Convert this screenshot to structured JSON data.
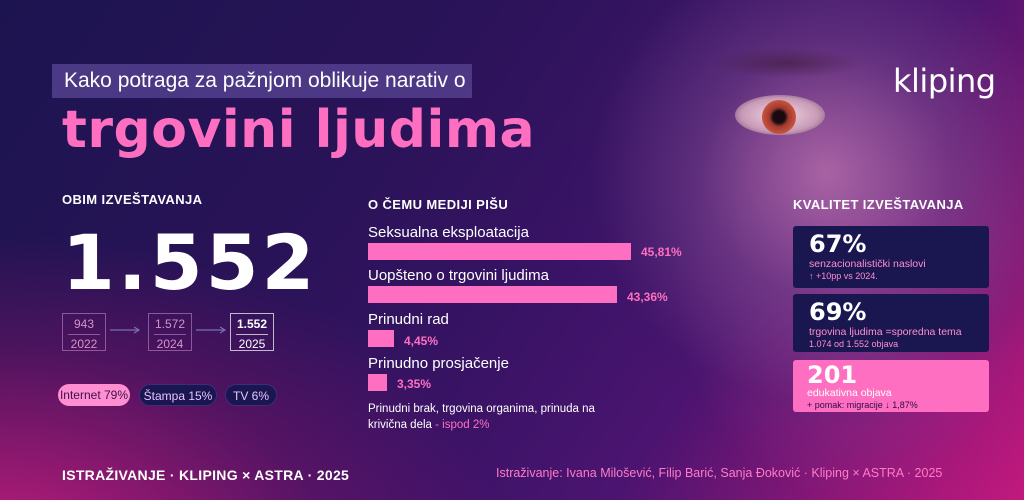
{
  "header": {
    "subtitle": "Kako potraga za pažnjom oblikuje narativ o",
    "title": "trgovini ljudima",
    "logo": "kliping"
  },
  "volume": {
    "heading": "OBIM IZVEŠTAVANJA",
    "total": "1.552",
    "timeline": [
      {
        "value": "943",
        "year": "2022"
      },
      {
        "value": "1.572",
        "year": "2024"
      },
      {
        "value": "1.552",
        "year": "2025"
      }
    ],
    "media": [
      {
        "label": "Internet 79%"
      },
      {
        "label": "Štampa 15%"
      },
      {
        "label": "TV 6%"
      }
    ]
  },
  "topics": {
    "heading": "O ČEMU MEDIJI PIŠU",
    "items": [
      {
        "label": "Seksualna eksploatacija",
        "value": 45.81,
        "display": "45,81%"
      },
      {
        "label": "Uopšteno o trgovini ljudima",
        "value": 43.36,
        "display": "43,36%"
      },
      {
        "label": "Prinudni rad",
        "value": 4.45,
        "display": "4,45%"
      },
      {
        "label": "Prinudno prosjačenje",
        "value": 3.35,
        "display": "3,35%"
      }
    ],
    "note": "Prinudni brak, trgovina organima, prinuda na krivična dela",
    "note_suffix": " - ispod 2%"
  },
  "quality": {
    "heading": "KVALITET IZVEŠTAVANJA",
    "cards": [
      {
        "num": "67%",
        "desc": "senzacionalistički naslovi",
        "sub": "↑ +10pp vs 2024."
      },
      {
        "num": "69%",
        "desc": "trgovina ljudima =sporedna tema",
        "sub": "1.074 od 1.552 objava"
      },
      {
        "num": "201",
        "desc": "edukativna objava",
        "sub": "+ pomak: migracije ↓ 1,87%"
      }
    ]
  },
  "footer": {
    "left": "ISTRAŽIVANJE · KLIPING × ASTRA · 2025",
    "right": "Istraživanje: Ivana Milošević, Filip Barić, Sanja Đoković · Kliping × ASTRA · 2025"
  },
  "colors": {
    "accent": "#ff6fc1",
    "card_dark": "#1a1650",
    "card_pink": "#ff6fc1"
  }
}
